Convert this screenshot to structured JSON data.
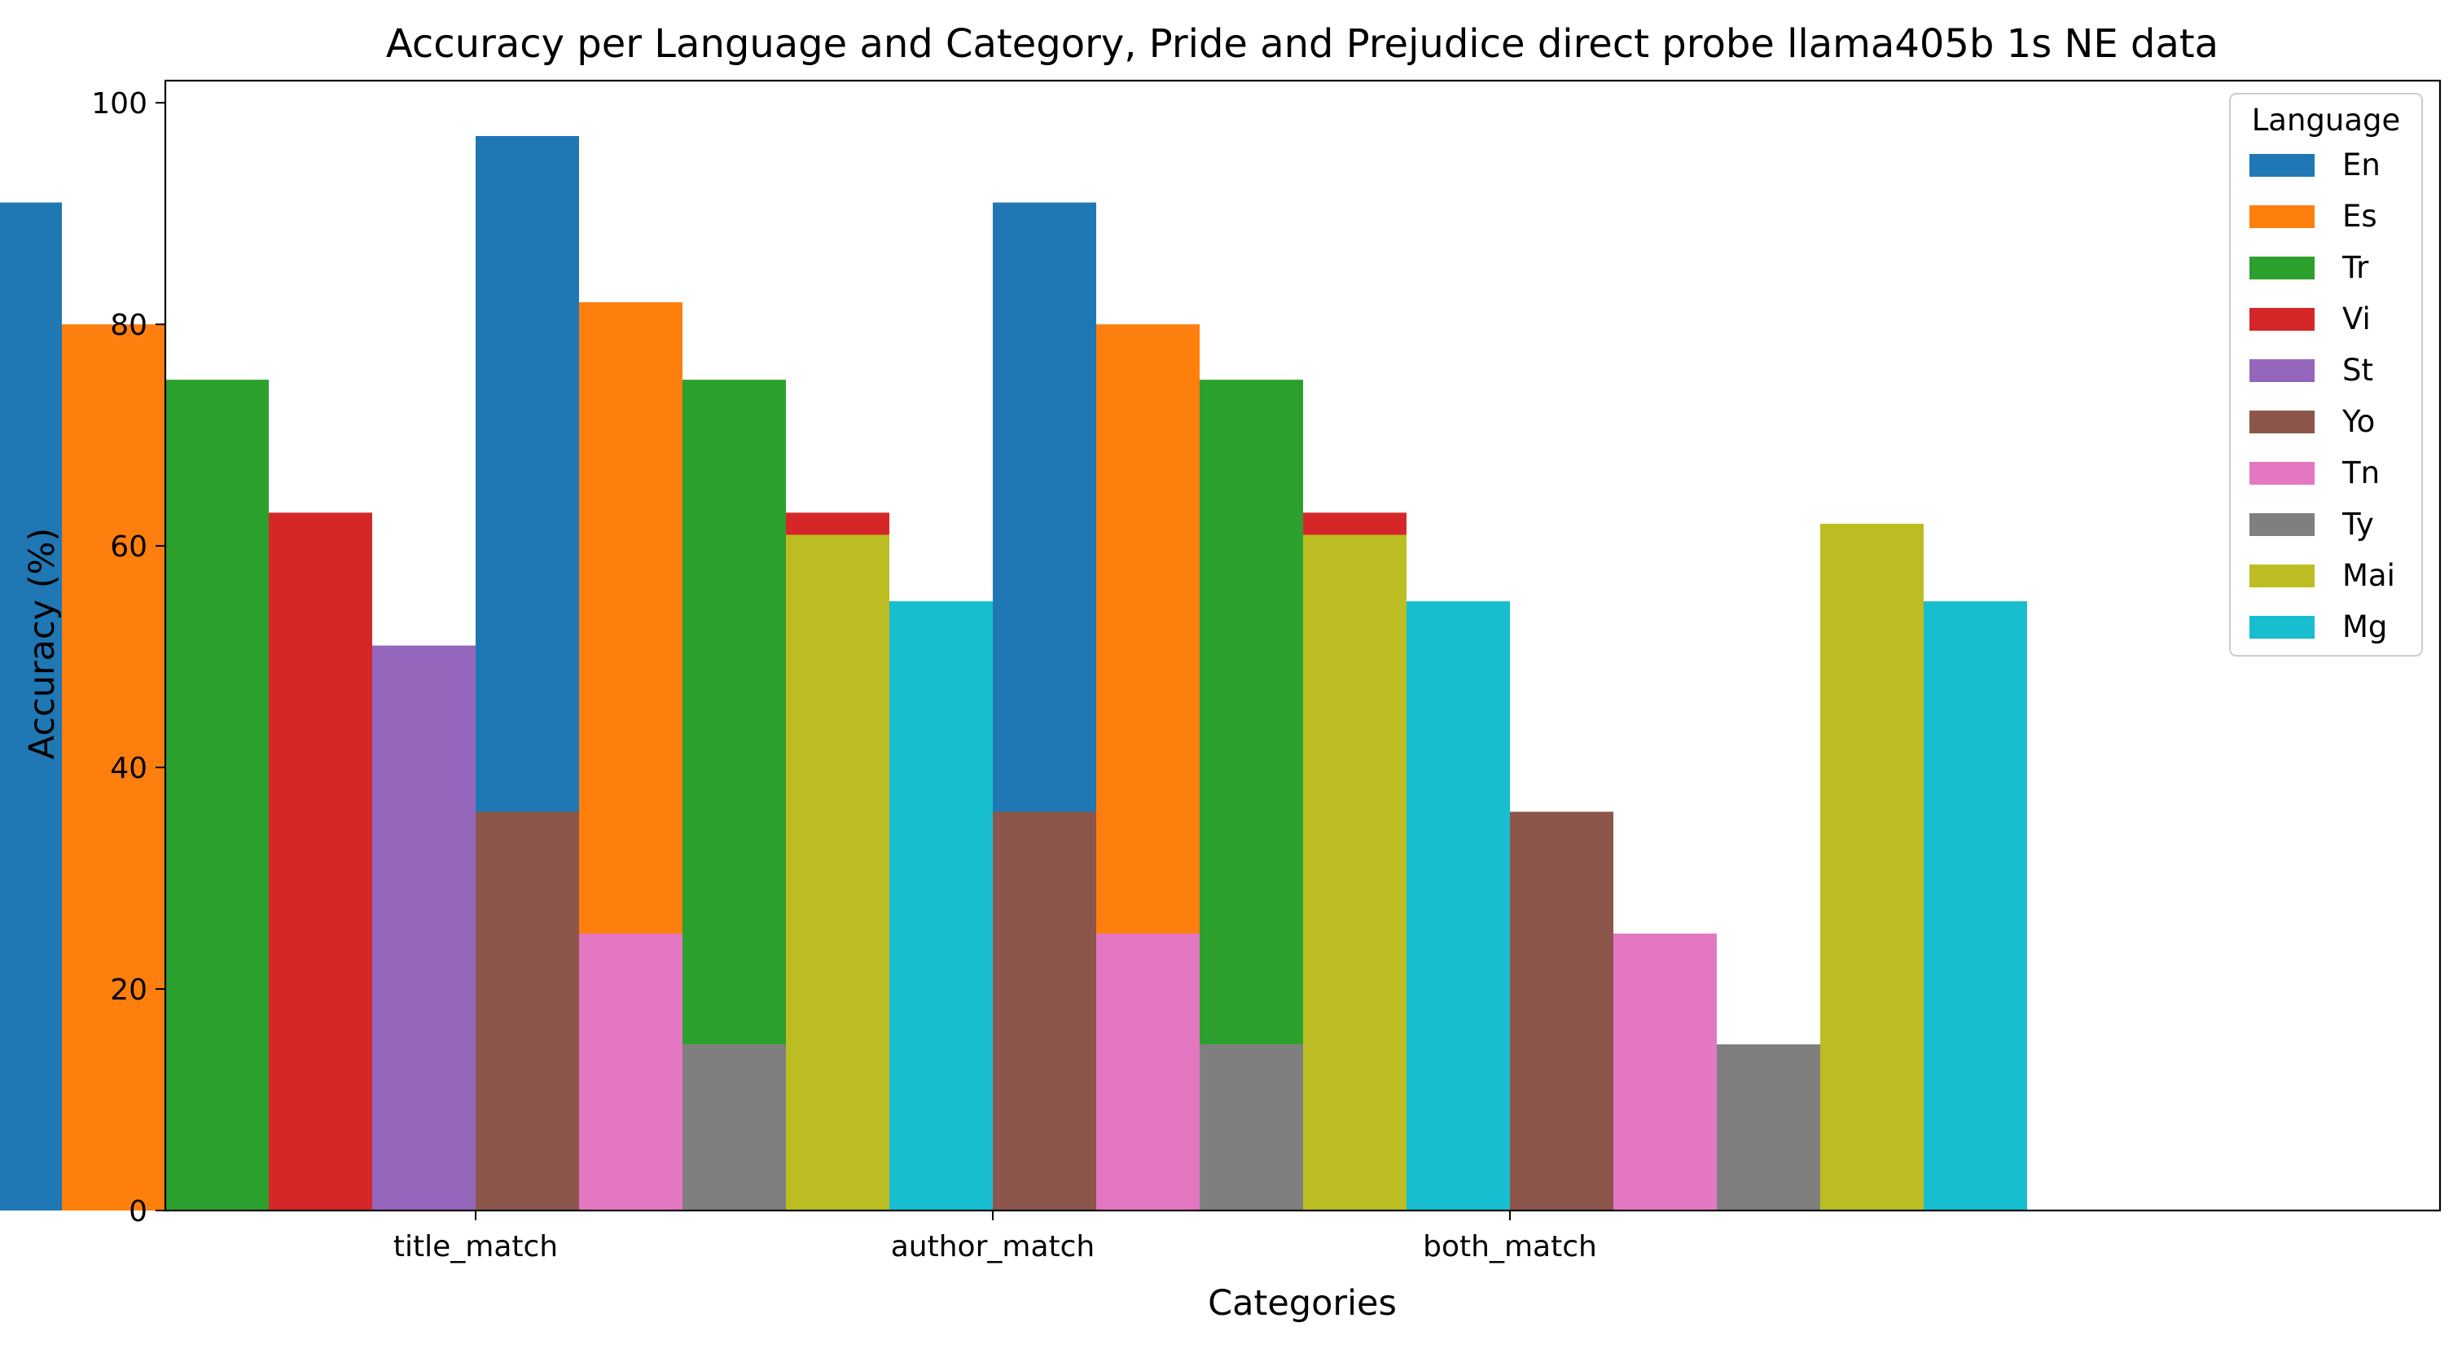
{
  "chart_data": {
    "type": "bar",
    "title": "Accuracy per Language and Category, Pride and Prejudice direct probe llama405b 1s NE data",
    "xlabel": "Categories",
    "ylabel": "Accuracy (%)",
    "ylim": [
      0,
      102
    ],
    "yticks": [
      0,
      20,
      40,
      60,
      80,
      100
    ],
    "categories": [
      "title_match",
      "author_match",
      "both_match"
    ],
    "grid": false,
    "legend": {
      "title": "Language",
      "placement": "top-right"
    },
    "series": [
      {
        "name": "En",
        "color": "#1f77b4",
        "values": [
          91,
          97,
          91
        ]
      },
      {
        "name": "Es",
        "color": "#ff7f0e",
        "values": [
          80,
          82,
          80
        ]
      },
      {
        "name": "Tr",
        "color": "#2ca02c",
        "values": [
          75,
          75,
          75
        ]
      },
      {
        "name": "Vi",
        "color": "#d62728",
        "values": [
          63,
          63,
          63
        ]
      },
      {
        "name": "St",
        "color": "#9467bd",
        "values": [
          51,
          51,
          51
        ]
      },
      {
        "name": "Yo",
        "color": "#8c564b",
        "values": [
          36,
          36,
          36
        ]
      },
      {
        "name": "Tn",
        "color": "#e377c2",
        "values": [
          25,
          25,
          25
        ]
      },
      {
        "name": "Ty",
        "color": "#7f7f7f",
        "values": [
          15,
          15,
          15
        ]
      },
      {
        "name": "Mai",
        "color": "#bcbd22",
        "values": [
          61,
          61,
          62
        ]
      },
      {
        "name": "Mg",
        "color": "#17becf",
        "values": [
          55,
          55,
          55
        ]
      }
    ]
  }
}
